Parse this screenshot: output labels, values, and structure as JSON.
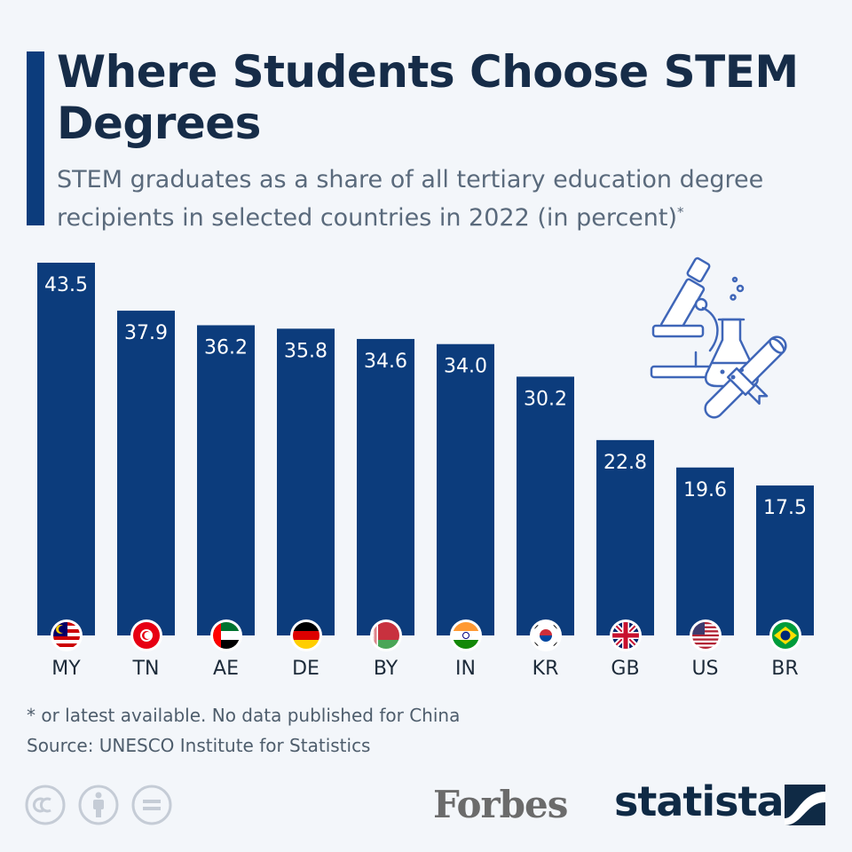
{
  "header": {
    "title": "Where Students Choose STEM Degrees",
    "subtitle": "STEM graduates as a share of all tertiary education degree recipients in selected countries in 2022 (in percent)",
    "subtitle_mark": "*"
  },
  "chart_data": {
    "type": "bar",
    "categories": [
      "MY",
      "TN",
      "AE",
      "DE",
      "BY",
      "IN",
      "KR",
      "GB",
      "US",
      "BR"
    ],
    "values": [
      43.5,
      37.9,
      36.2,
      35.8,
      34.6,
      34.0,
      30.2,
      22.8,
      19.6,
      17.5
    ],
    "value_labels": [
      "43.5",
      "37.9",
      "36.2",
      "35.8",
      "34.6",
      "34.0",
      "30.2",
      "22.8",
      "19.6",
      "17.5"
    ],
    "title": "",
    "xlabel": "",
    "ylabel": "",
    "ylim": [
      0,
      43.5
    ],
    "grid": false,
    "bar_color": "#0c3c7c"
  },
  "flags": [
    "malaysia-flag-icon",
    "tunisia-flag-icon",
    "uae-flag-icon",
    "germany-flag-icon",
    "belarus-flag-icon",
    "india-flag-icon",
    "south-korea-flag-icon",
    "uk-flag-icon",
    "usa-flag-icon",
    "brazil-flag-icon"
  ],
  "footer": {
    "footnote": "* or latest available. No data published for China",
    "source": "Source: UNESCO Institute for Statistics",
    "cc_icons": [
      "cc-icon",
      "attribution-icon",
      "no-derivatives-icon"
    ],
    "forbes": "Forbes",
    "statista": "statista"
  },
  "colors": {
    "accent": "#0c3c7c",
    "title": "#162c48",
    "subtitle": "#5a6a7c",
    "background": "#f3f6fa"
  }
}
